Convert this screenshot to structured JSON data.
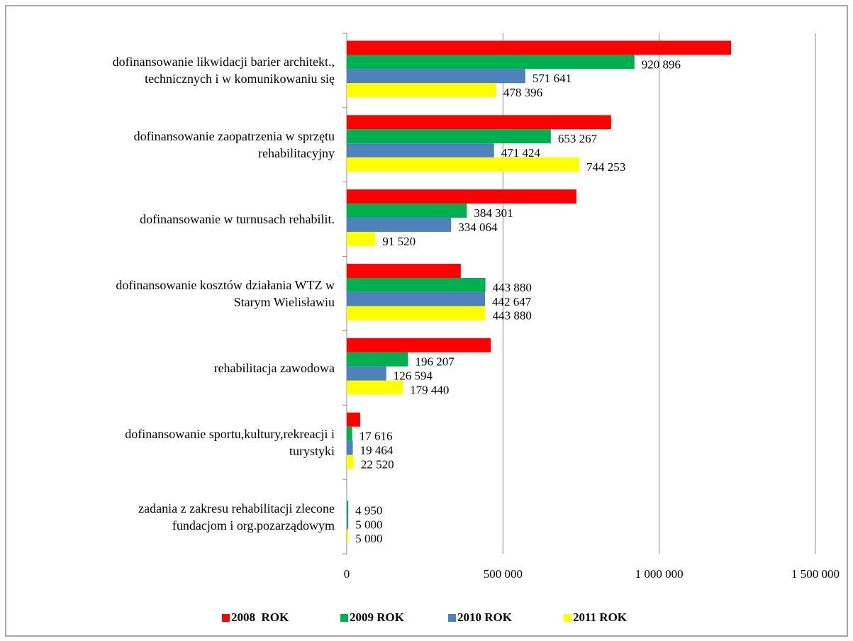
{
  "chart_data": {
    "type": "hbar",
    "categories": [
      "dofinansowanie  likwidacji barier architekt.,\ntechnicznych i w komunikowaniu się",
      "dofinansowanie zaopatrzenia w sprzętu\nrehabilitacyjny",
      "dofinansowanie w turnusach rehabilit.",
      "dofinansowanie kosztów działania WTZ w\nStarym Wielisławiu",
      "rehabilitacja zawodowa",
      "dofinansowanie sportu,kultury,rekreacji i\nturystyki",
      "zadania z zakresu rehabilitacji zlecone\nfundacjom i org.pozarządowym"
    ],
    "series": [
      {
        "name": "2008  ROK",
        "color": "#ff0000",
        "values": [
          1230000,
          846000,
          735000,
          365000,
          461000,
          43000,
          0
        ]
      },
      {
        "name": "2009 ROK",
        "color": "#00b050",
        "values": [
          920896,
          653267,
          384301,
          443880,
          196207,
          17616,
          4950
        ],
        "value_labels": [
          "920 896",
          "653 267",
          "384 301",
          "443 880",
          "196 207",
          "17 616",
          "4 950"
        ]
      },
      {
        "name": "2010 ROK",
        "color": "#4f81bd",
        "values": [
          571641,
          471424,
          334064,
          442647,
          126594,
          19464,
          5000
        ],
        "value_labels": [
          "571 641",
          "471 424",
          "334 064",
          "442 647",
          "126 594",
          "19 464",
          "5 000"
        ]
      },
      {
        "name": "2011 ROK",
        "color": "#ffff00",
        "values": [
          478396,
          744253,
          91520,
          443880,
          179440,
          22520,
          5000
        ],
        "value_labels": [
          "478 396",
          "744 253",
          "91 520",
          "443 880",
          "179 440",
          "22 520",
          "5 000"
        ]
      }
    ],
    "xlim": [
      0,
      1500000
    ],
    "xticks": [
      0,
      {
        "value": 500000,
        "label": "500 000"
      },
      {
        "value": 1000000,
        "label": "1 000 000"
      },
      {
        "value": 1500000,
        "label": "1 500 000"
      }
    ],
    "grid": true,
    "legend": "bottom"
  }
}
